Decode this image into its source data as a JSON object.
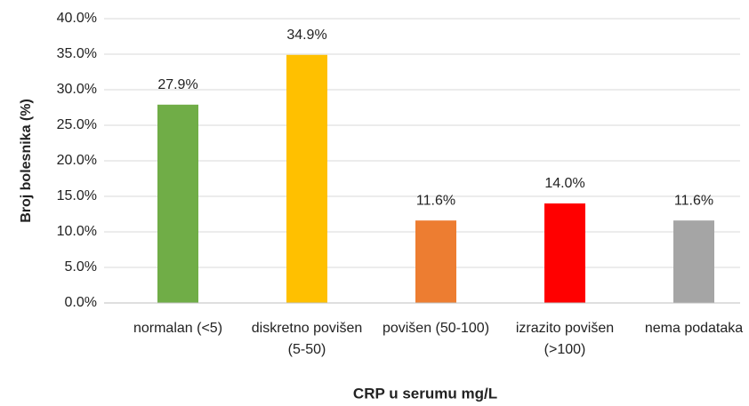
{
  "chart_data": {
    "type": "bar",
    "categories": [
      "normalan (<5)",
      "diskretno povišen (5-50)",
      "povišen (50-100)",
      "izrazito povišen (>100)",
      "nema podataka"
    ],
    "values": [
      27.9,
      34.9,
      11.6,
      14.0,
      11.6
    ],
    "value_labels": [
      "27.9%",
      "34.9%",
      "11.6%",
      "14.0%",
      "11.6%"
    ],
    "colors": [
      "#70ad47",
      "#ffc000",
      "#ed7d31",
      "#ff0000",
      "#a5a5a5"
    ],
    "xlabel": "CRP u serumu mg/L",
    "ylabel": "Broj bolesnika (%)",
    "ylim": [
      0,
      40
    ],
    "yticks": [
      {
        "value": 0,
        "label": "0.0%"
      },
      {
        "value": 5,
        "label": "5.0%"
      },
      {
        "value": 10,
        "label": "10.0%"
      },
      {
        "value": 15,
        "label": "15.0%"
      },
      {
        "value": 20,
        "label": "20.0%"
      },
      {
        "value": 25,
        "label": "25.0%"
      },
      {
        "value": 30,
        "label": "30.0%"
      },
      {
        "value": 35,
        "label": "35.0%"
      },
      {
        "value": 40,
        "label": "40.0%"
      }
    ],
    "grid": true
  }
}
